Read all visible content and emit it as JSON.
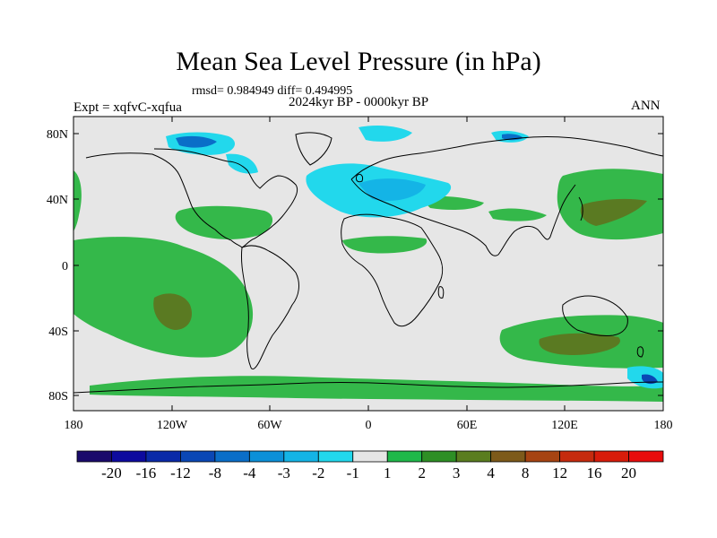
{
  "title": "Mean Sea Level Pressure (in hPa)",
  "stats": "rmsd= 0.984949  diff= 0.494995",
  "period": "2024kyr BP - 0000kyr BP",
  "experiment": "Expt = xqfvC-xqfua",
  "season": "ANN",
  "axes": {
    "lat_labels": [
      "80N",
      "40N",
      "0",
      "40S",
      "80S"
    ],
    "lon_labels": [
      "180",
      "120W",
      "60W",
      "0",
      "60E",
      "120E",
      "180"
    ]
  },
  "colorbar": {
    "labels": [
      "-20",
      "-16",
      "-12",
      "-8",
      "-4",
      "-3",
      "-2",
      "-1",
      "1",
      "2",
      "3",
      "4",
      "8",
      "12",
      "16",
      "20"
    ],
    "colors": [
      "#1a0a6b",
      "#0d0a9e",
      "#0a2aa8",
      "#0a47b5",
      "#0a6ec8",
      "#0c90d8",
      "#14b4e6",
      "#22d8ec",
      "#e6e6e6",
      "#1fb84a",
      "#2e8f25",
      "#5a7d1f",
      "#7d5a1a",
      "#a64412",
      "#c62b0e",
      "#d81c0a",
      "#e80c0c"
    ]
  },
  "colors": {
    "land_fill": "#e6e6e6",
    "positive_1_2": "#34b84a",
    "positive_3_4": "#5a7a22",
    "negative_2_1": "#22d8ec",
    "negative_3_2": "#14b4e6",
    "negative_4_3": "#0a6ec8"
  }
}
